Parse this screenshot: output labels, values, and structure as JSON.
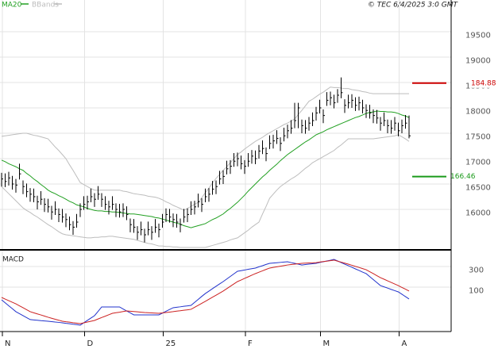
{
  "chart_data": [
    {
      "type": "ohlc",
      "source": "© TEC 6/4/2025 3:0 GMT",
      "color": "#000000",
      "categories": [
        "N",
        null,
        null,
        null,
        null,
        null,
        null,
        null,
        null,
        null,
        null,
        null,
        null,
        null,
        null,
        null,
        null,
        null,
        null,
        null,
        null,
        null,
        null,
        "D",
        null,
        null,
        null,
        null,
        null,
        null,
        null,
        null,
        null,
        null,
        null,
        null,
        null,
        null,
        null,
        null,
        null,
        null,
        null,
        null,
        null,
        "25",
        null,
        null,
        null,
        null,
        null,
        null,
        null,
        null,
        null,
        null,
        null,
        null,
        null,
        null,
        null,
        null,
        null,
        null,
        null,
        null,
        null,
        null,
        "F",
        null,
        null,
        null,
        null,
        null,
        null,
        null,
        null,
        null,
        null,
        null,
        null,
        null,
        null,
        null,
        null,
        null,
        null,
        null,
        null,
        "M",
        null,
        null,
        null,
        null,
        null,
        null,
        null,
        null,
        null,
        null,
        null,
        null,
        null,
        null,
        null,
        null,
        null,
        null,
        null,
        null,
        null,
        "A",
        null,
        null,
        null
      ],
      "high": [
        16720,
        16710,
        16740,
        16660,
        16600,
        16900,
        16570,
        16510,
        16420,
        16410,
        16270,
        16360,
        16220,
        16210,
        16070,
        16160,
        16020,
        16010,
        15920,
        15860,
        15770,
        15910,
        16120,
        16260,
        16270,
        16410,
        16320,
        16460,
        16320,
        16260,
        16170,
        16260,
        16120,
        16110,
        16120,
        16060,
        15820,
        15810,
        15670,
        15760,
        15620,
        15760,
        15670,
        15810,
        15720,
        15910,
        16020,
        16010,
        15920,
        15910,
        15820,
        16010,
        16020,
        16160,
        16170,
        16310,
        16220,
        16410,
        16420,
        16560,
        16570,
        16760,
        16770,
        16960,
        16970,
        17110,
        17120,
        17060,
        16970,
        17110,
        17170,
        17160,
        17270,
        17360,
        17220,
        17460,
        17470,
        17560,
        17420,
        17610,
        17670,
        17760,
        18100,
        18100,
        17770,
        17760,
        17820,
        17910,
        18020,
        18160,
        17970,
        18310,
        18320,
        18260,
        18370,
        18600,
        18170,
        18260,
        18270,
        18210,
        18220,
        18160,
        18070,
        18060,
        17970,
        17960,
        17820,
        17910,
        17770,
        17760,
        17820,
        17710,
        17770,
        17860,
        17850
      ],
      "low": [
        16450,
        16440,
        16470,
        16390,
        16330,
        16590,
        16300,
        16240,
        16150,
        16140,
        16000,
        16090,
        15950,
        15940,
        15800,
        15890,
        15750,
        15740,
        15650,
        15590,
        15500,
        15640,
        15850,
        15990,
        16000,
        16140,
        16050,
        16190,
        16050,
        15990,
        15900,
        15990,
        15850,
        15840,
        15850,
        15790,
        15550,
        15540,
        15400,
        15490,
        15350,
        15490,
        15400,
        15540,
        15450,
        15640,
        15750,
        15740,
        15650,
        15640,
        15550,
        15740,
        15750,
        15890,
        15900,
        16040,
        15950,
        16140,
        16150,
        16290,
        16300,
        16490,
        16500,
        16690,
        16700,
        16840,
        16850,
        16790,
        16700,
        16840,
        16900,
        16890,
        17000,
        17090,
        16950,
        17190,
        17200,
        17290,
        17150,
        17340,
        17400,
        17490,
        17600,
        17600,
        17500,
        17490,
        17550,
        17640,
        17750,
        17890,
        17700,
        18040,
        18050,
        17990,
        18100,
        18190,
        17900,
        17990,
        18000,
        17940,
        17950,
        17890,
        17800,
        17790,
        17700,
        17690,
        17550,
        17640,
        17500,
        17490,
        17550,
        17440,
        17500,
        17590,
        17400
      ],
      "close": [
        16600,
        16550,
        16620,
        16500,
        16480,
        16700,
        16450,
        16350,
        16300,
        16250,
        16150,
        16200,
        16100,
        16050,
        15950,
        16000,
        15900,
        15850,
        15800,
        15700,
        15650,
        15750,
        16000,
        16100,
        16150,
        16250,
        16200,
        16300,
        16200,
        16100,
        16050,
        16100,
        16000,
        15950,
        16000,
        15900,
        15700,
        15650,
        15550,
        15600,
        15500,
        15600,
        15550,
        15650,
        15600,
        15750,
        15900,
        15850,
        15800,
        15750,
        15700,
        15850,
        15900,
        16000,
        16050,
        16150,
        16100,
        16250,
        16300,
        16400,
        16450,
        16600,
        16650,
        16800,
        16850,
        16950,
        17000,
        16900,
        16850,
        16950,
        17050,
        17000,
        17150,
        17200,
        17100,
        17300,
        17350,
        17400,
        17300,
        17450,
        17550,
        17600,
        17750,
        18000,
        17650,
        17600,
        17700,
        17750,
        17900,
        18000,
        17850,
        18150,
        18200,
        18100,
        18250,
        18300,
        18050,
        18100,
        18150,
        18050,
        18100,
        18000,
        17950,
        17900,
        17850,
        17800,
        17700,
        17750,
        17650,
        17600,
        17700,
        17550,
        17650,
        17700,
        17450
      ],
      "series": [
        {
          "name": "MA20",
          "color": "#22a022",
          "values": [
            16970,
            16940,
            16900,
            16870,
            16840,
            16800,
            16770,
            16710,
            16660,
            16600,
            16550,
            16490,
            16440,
            16380,
            16340,
            16310,
            16270,
            16240,
            16200,
            16160,
            16130,
            16090,
            16070,
            16050,
            16020,
            16000,
            15980,
            15970,
            15970,
            15960,
            15960,
            15950,
            15950,
            15940,
            15930,
            15920,
            15910,
            15910,
            15900,
            15890,
            15880,
            15870,
            15860,
            15840,
            15830,
            15810,
            15790,
            15770,
            15750,
            15730,
            15710,
            15680,
            15660,
            15640,
            15660,
            15680,
            15700,
            15720,
            15760,
            15800,
            15830,
            15870,
            15910,
            15970,
            16020,
            16080,
            16140,
            16210,
            16280,
            16360,
            16430,
            16500,
            16570,
            16640,
            16700,
            16770,
            16830,
            16890,
            16960,
            17020,
            17080,
            17130,
            17180,
            17230,
            17280,
            17330,
            17370,
            17420,
            17470,
            17500,
            17530,
            17570,
            17600,
            17630,
            17660,
            17690,
            17720,
            17750,
            17780,
            17810,
            17830,
            17860,
            17890,
            17910,
            17920,
            17940,
            17930,
            17930,
            17920,
            17920,
            17910,
            17890,
            17860,
            17840,
            17810
          ]
        },
        {
          "name": "BBands",
          "color": "#bdbdbd",
          "upper": [
            17440,
            17450,
            17460,
            17470,
            17480,
            17490,
            17500,
            17500,
            17480,
            17460,
            17450,
            17430,
            17410,
            17390,
            17310,
            17230,
            17160,
            17080,
            17000,
            16880,
            16770,
            16650,
            16530,
            16490,
            16450,
            16410,
            16380,
            16380,
            16380,
            16380,
            16380,
            16380,
            16380,
            16380,
            16360,
            16350,
            16330,
            16310,
            16300,
            16290,
            16280,
            16260,
            16250,
            16240,
            16220,
            16190,
            16150,
            16120,
            16080,
            16050,
            16020,
            15980,
            16020,
            16060,
            16100,
            16140,
            16230,
            16330,
            16420,
            16520,
            16610,
            16690,
            16770,
            16840,
            16920,
            17000,
            17080,
            17130,
            17190,
            17240,
            17290,
            17340,
            17380,
            17420,
            17470,
            17510,
            17550,
            17590,
            17630,
            17670,
            17700,
            17740,
            17780,
            17870,
            17950,
            18040,
            18130,
            18170,
            18220,
            18270,
            18310,
            18360,
            18410,
            18400,
            18400,
            18390,
            18380,
            18380,
            18360,
            18350,
            18340,
            18320,
            18310,
            18290,
            18280,
            18280,
            18280,
            18280,
            18280,
            18280,
            18280,
            18280,
            18280,
            18280,
            18280
          ],
          "lower": [
            16450,
            16380,
            16310,
            16240,
            16170,
            16100,
            16030,
            15980,
            15940,
            15890,
            15850,
            15800,
            15750,
            15700,
            15660,
            15610,
            15560,
            15520,
            15500,
            15490,
            15480,
            15470,
            15460,
            15450,
            15440,
            15440,
            15450,
            15450,
            15460,
            15460,
            15470,
            15470,
            15460,
            15450,
            15440,
            15430,
            15420,
            15410,
            15390,
            15370,
            15350,
            15330,
            15320,
            15300,
            15280,
            15280,
            15270,
            15270,
            15260,
            15260,
            15250,
            15250,
            15250,
            15250,
            15250,
            15250,
            15250,
            15250,
            15270,
            15290,
            15310,
            15330,
            15350,
            15370,
            15400,
            15420,
            15440,
            15490,
            15540,
            15590,
            15650,
            15700,
            15750,
            15910,
            16060,
            16220,
            16300,
            16380,
            16450,
            16500,
            16550,
            16600,
            16640,
            16690,
            16750,
            16810,
            16860,
            16920,
            16960,
            17000,
            17040,
            17080,
            17120,
            17160,
            17220,
            17270,
            17330,
            17390,
            17390,
            17390,
            17390,
            17390,
            17390,
            17390,
            17390,
            17400,
            17410,
            17420,
            17430,
            17440,
            17450,
            17470,
            17430,
            17390,
            17340
          ]
        }
      ],
      "annotations": [
        {
          "value": 18488,
          "label": "184.88",
          "color": "#cc0000"
        },
        {
          "value": 16646,
          "label": "166.46",
          "color": "#1a9a1a"
        }
      ],
      "ylim": [
        15219,
        20125
      ],
      "yticks": [
        16000,
        16500,
        17000,
        17500,
        18000,
        18500,
        19000,
        19500
      ],
      "grid": true
    },
    {
      "type": "line",
      "title": "MACD",
      "series": [
        {
          "color": "#2233cc",
          "values": [
            -23,
            -52,
            -81,
            -109,
            -138,
            -157,
            -177,
            -196,
            -215,
            -218,
            -221,
            -225,
            -228,
            -231,
            -235,
            -239,
            -242,
            -246,
            -251,
            -255,
            -260,
            -264,
            -269,
            -246,
            -223,
            -200,
            -177,
            -135,
            -92,
            -92,
            -92,
            -92,
            -92,
            -92,
            -112,
            -131,
            -150,
            -169,
            -169,
            -169,
            -169,
            -169,
            -169,
            -169,
            -169,
            -152,
            -134,
            -117,
            -100,
            -95,
            -91,
            -86,
            -82,
            -77,
            -48,
            -19,
            10,
            38,
            61,
            85,
            108,
            131,
            154,
            179,
            204,
            229,
            254,
            260,
            266,
            273,
            279,
            285,
            297,
            308,
            320,
            331,
            334,
            337,
            340,
            343,
            346,
            338,
            331,
            323,
            315,
            319,
            323,
            327,
            331,
            339,
            346,
            354,
            361,
            369,
            354,
            338,
            323,
            308,
            293,
            277,
            262,
            246,
            231,
            202,
            173,
            144,
            115,
            103,
            91,
            78,
            66,
            54,
            31,
            8,
            -15
          ]
        },
        {
          "color": "#cc2222",
          "values": [
            0,
            -16,
            -31,
            -47,
            -62,
            -81,
            -100,
            -119,
            -138,
            -149,
            -160,
            -170,
            -181,
            -192,
            -202,
            -212,
            -221,
            -231,
            -236,
            -240,
            -245,
            -249,
            -254,
            -246,
            -239,
            -231,
            -223,
            -209,
            -195,
            -182,
            -168,
            -154,
            -148,
            -143,
            -137,
            -131,
            -134,
            -137,
            -140,
            -143,
            -146,
            -148,
            -150,
            -152,
            -154,
            -150,
            -146,
            -142,
            -138,
            -133,
            -129,
            -124,
            -120,
            -115,
            -96,
            -77,
            -57,
            -38,
            -18,
            2,
            22,
            42,
            62,
            85,
            108,
            131,
            154,
            169,
            185,
            200,
            216,
            231,
            245,
            258,
            272,
            285,
            291,
            297,
            303,
            309,
            315,
            319,
            323,
            327,
            331,
            333,
            335,
            336,
            338,
            343,
            348,
            352,
            357,
            362,
            352,
            343,
            333,
            323,
            312,
            301,
            291,
            280,
            269,
            250,
            231,
            211,
            192,
            177,
            161,
            146,
            130,
            115,
            97,
            80,
            62
          ]
        }
      ],
      "ylim": [
        -331,
        454
      ],
      "yticks": [
        100,
        300
      ],
      "grid": true
    }
  ]
}
